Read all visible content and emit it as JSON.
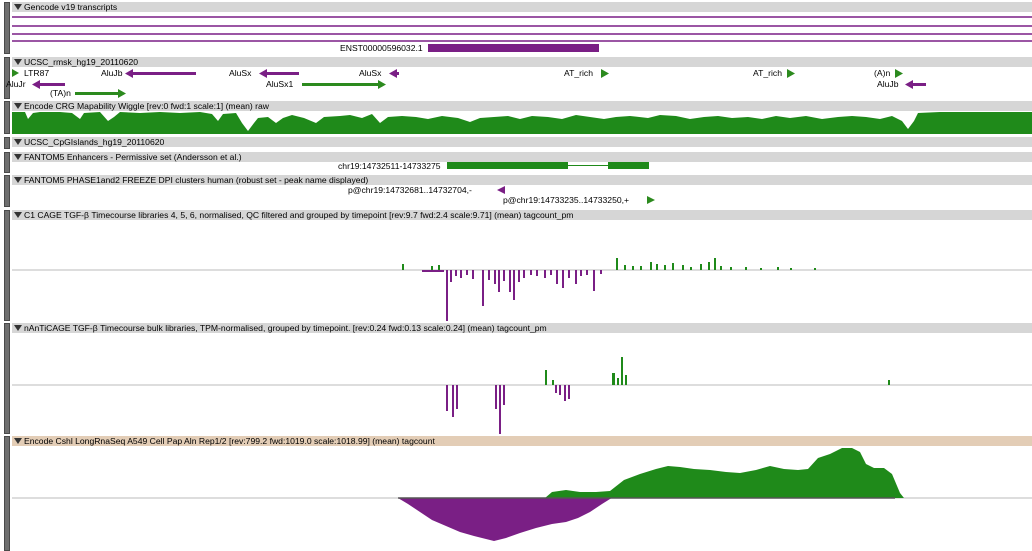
{
  "colors": {
    "gene": "#7a1f85",
    "repeat_fwd": "#2c8a1e",
    "repeat_rev": "#7a1f85",
    "wiggle": "#1f8a1a",
    "header": "#d6d6d6",
    "header_tan": "#e3cdb6"
  },
  "tracks": [
    {
      "id": "gencode",
      "title": "Gencode v19 transcripts",
      "feature_label": "ENST00000596032.1"
    },
    {
      "id": "rmsk",
      "title": "UCSC_rmsk_hg19_20110620",
      "labels": [
        "LTR87",
        "AluJb",
        "AluSx",
        "AluSx",
        "AT_rich",
        "AT_rich",
        "(A)n",
        "AluJr",
        "(TA)n",
        "AluSx1",
        "AluJb"
      ]
    },
    {
      "id": "mapability",
      "title": "Encode CRG Mapability Wiggle [rev:0 fwd:1 scale:1] (mean) raw"
    },
    {
      "id": "cpg",
      "title": "UCSC_CpGIslands_hg19_20110620"
    },
    {
      "id": "enhancers",
      "title": "FANTOM5 Enhancers - Permissive set (Andersson et al.)",
      "feature_label": "chr19:14732511-14733275"
    },
    {
      "id": "dpi",
      "title": "FANTOM5 PHASE1and2 FREEZE DPI clusters human (robust set - peak name displayed)",
      "labels": [
        "p@chr19:14732681..14732704,-",
        "p@chr19:14733235..14733250,+"
      ]
    },
    {
      "id": "cage",
      "title": "C1 CAGE TGF-β Timecourse libraries 4, 5, 6, normalised, QC filtered and grouped by timepoint [rev:9.7 fwd:2.4 scale:9.71] (mean) tagcount_pm"
    },
    {
      "id": "nanti",
      "title": "nAnTiCAGE TGF-β Timecourse bulk libraries, TPM-normalised, grouped by timepoint. [rev:0.24 fwd:0.13 scale:0.24] (mean) tagcount_pm"
    },
    {
      "id": "rnaseq",
      "title": "Encode Cshl LongRnaSeq A549 Cell Pap Aln Rep1/2 [rev:799.2 fwd:1019.0 scale:1018.99] (mean) tagcount"
    }
  ]
}
